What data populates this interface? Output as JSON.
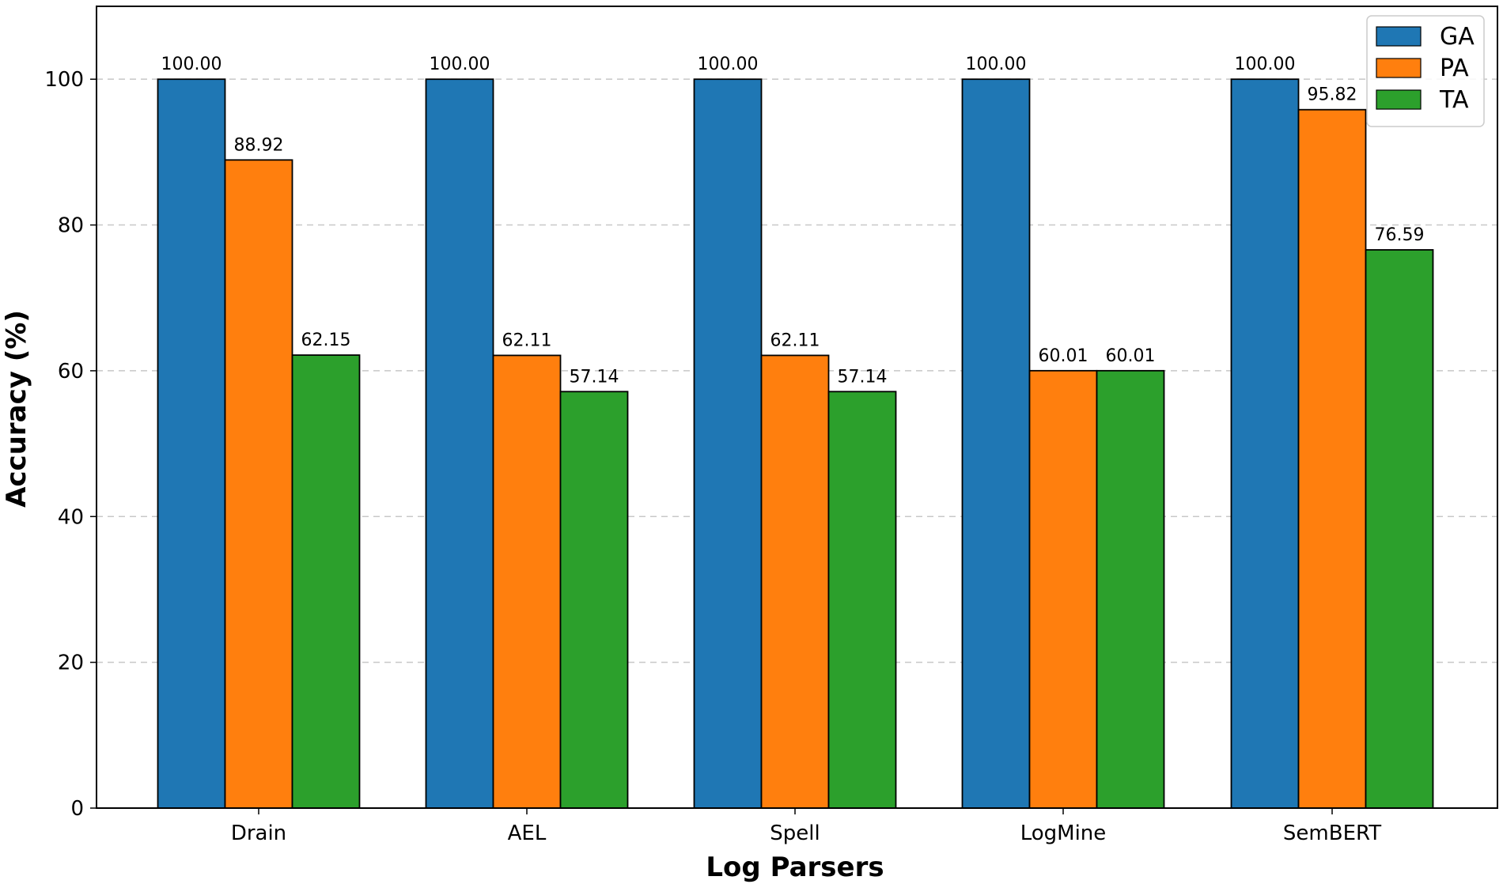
{
  "chart_data": {
    "type": "bar",
    "title": "",
    "xlabel": "Log Parsers",
    "ylabel": "Accuracy (%)",
    "categories": [
      "Drain",
      "AEL",
      "Spell",
      "LogMine",
      "SemBERT"
    ],
    "series": [
      {
        "name": "GA",
        "color": "#1f77b4",
        "values": [
          100.0,
          100.0,
          100.0,
          100.0,
          100.0
        ]
      },
      {
        "name": "PA",
        "color": "#ff7f0e",
        "values": [
          88.92,
          62.11,
          62.11,
          60.01,
          95.82
        ]
      },
      {
        "name": "TA",
        "color": "#2ca02c",
        "values": [
          62.15,
          57.14,
          57.14,
          60.01,
          76.59
        ]
      }
    ],
    "ylim": [
      0,
      110
    ],
    "yticks": [
      0,
      20,
      40,
      60,
      80,
      100
    ],
    "data_labels": [
      [
        "100.00",
        "100.00",
        "100.00",
        "100.00",
        "100.00"
      ],
      [
        "88.92",
        "62.11",
        "62.11",
        "60.01",
        "95.82"
      ],
      [
        "62.15",
        "57.14",
        "57.14",
        "60.01",
        "76.59"
      ]
    ],
    "grid": "y-dashed",
    "legend_position": "top-right"
  }
}
